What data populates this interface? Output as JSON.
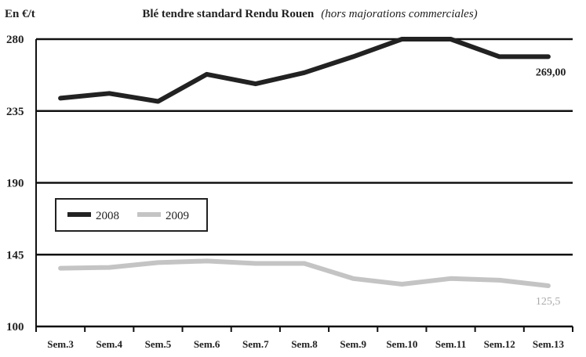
{
  "chart_data": {
    "type": "line",
    "title": "Blé tendre standard Rendu Rouen",
    "subtitle": "(hors majorations commerciales)",
    "ylabel": "En €/t",
    "xlabel": "",
    "categories": [
      "Sem.3",
      "Sem.4",
      "Sem.5",
      "Sem.6",
      "Sem.7",
      "Sem.8",
      "Sem.9",
      "Sem.10",
      "Sem.11",
      "Sem.12",
      "Sem.13"
    ],
    "ylim": [
      100,
      280
    ],
    "yticks": [
      100,
      145,
      190,
      235,
      280
    ],
    "grid": "horizontal",
    "legend_position": "left",
    "series": [
      {
        "name": "2008",
        "color": "#222222",
        "values": [
          243,
          246,
          241,
          258,
          252,
          259,
          269,
          280,
          280,
          269,
          269
        ],
        "end_label": "269,00",
        "end_label_color": "#222222"
      },
      {
        "name": "2009",
        "color": "#c4c4c4",
        "values": [
          136.5,
          137,
          140,
          141,
          139.5,
          139.5,
          130,
          126.5,
          130,
          129,
          125.5
        ],
        "end_label": "125,5",
        "end_label_color": "#aaaaaa"
      }
    ]
  }
}
